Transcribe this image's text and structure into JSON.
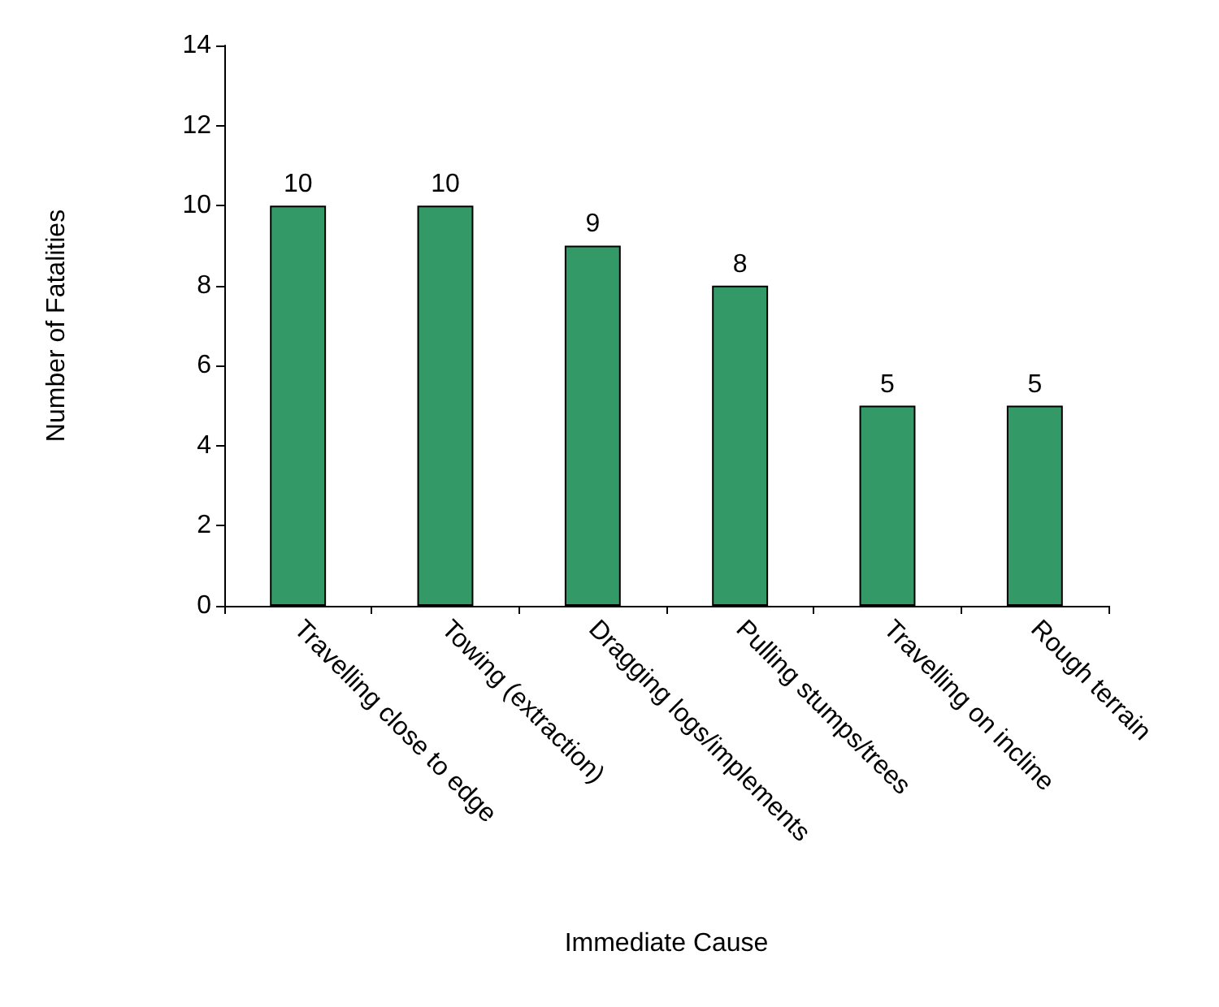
{
  "chart_data": {
    "type": "bar",
    "xlabel": "Immediate Cause",
    "ylabel": "Number of Fatalities",
    "categories": [
      "Travelling close to edge",
      "Towing (extraction)",
      "Dragging logs/implements",
      "Pulling stumps/trees",
      "Travelling on incline",
      "Rough terrain"
    ],
    "values": [
      10,
      10,
      9,
      8,
      5,
      5
    ],
    "color": "#339966",
    "ylim": [
      0,
      14
    ],
    "yticks": [
      0,
      2,
      4,
      6,
      8,
      10,
      12,
      14
    ],
    "grid": false,
    "data_labels": true
  }
}
